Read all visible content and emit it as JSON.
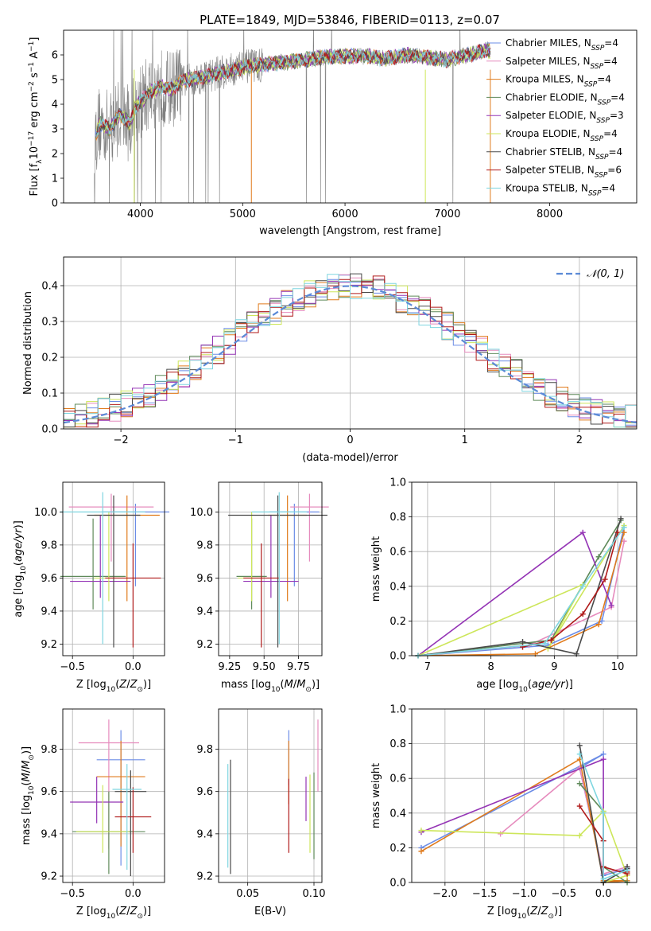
{
  "figure": {
    "title": "PLATE=1849, MJD=53846, FIBERID=0113, z=0.07"
  },
  "models": [
    {
      "name": "Chabrier MILES, N_SSP=4",
      "label_main": "Chabrier MILES, N",
      "label_sub": "SSP",
      "label_end": "=4",
      "color": "#6b8ce6"
    },
    {
      "name": "Salpeter MILES, N_SSP=4",
      "label_main": "Salpeter MILES, N",
      "label_sub": "SSP",
      "label_end": "=4",
      "color": "#e68bbd"
    },
    {
      "name": "Kroupa MILES, N_SSP=4",
      "label_main": "Kroupa MILES, N",
      "label_sub": "SSP",
      "label_end": "=4",
      "color": "#e07b1c"
    },
    {
      "name": "Chabrier ELODIE, N_SSP=4",
      "label_main": "Chabrier ELODIE, N",
      "label_sub": "SSP",
      "label_end": "=4",
      "color": "#5f8a5a"
    },
    {
      "name": "Salpeter ELODIE, N_SSP=3",
      "label_main": "Salpeter ELODIE, N",
      "label_sub": "SSP",
      "label_end": "=3",
      "color": "#9434b5"
    },
    {
      "name": "Kroupa ELODIE, N_SSP=4",
      "label_main": "Kroupa ELODIE, N",
      "label_sub": "SSP",
      "label_end": "=4",
      "color": "#cde65a"
    },
    {
      "name": "Chabrier STELIB, N_SSP=4",
      "label_main": "Chabrier STELIB, N",
      "label_sub": "SSP",
      "label_end": "=4",
      "color": "#4a4a4a"
    },
    {
      "name": "Salpeter STELIB, N_SSP=6",
      "label_main": "Salpeter STELIB, N",
      "label_sub": "SSP",
      "label_end": "=6",
      "color": "#b01a1a"
    },
    {
      "name": "Kroupa STELIB, N_SSP=4",
      "label_main": "Kroupa STELIB, N",
      "label_sub": "SSP",
      "label_end": "=4",
      "color": "#7fd6e0"
    }
  ],
  "chart_data": [
    {
      "id": "spectrum",
      "type": "line",
      "xlabel": "wavelength [Angstrom, rest frame]",
      "ylabel": "Flux [f_λ 10^-17 erg cm^-2 s^-1 A^-1]",
      "xlim": [
        3250,
        8850
      ],
      "ylim": [
        0,
        7
      ],
      "x_ticks": [
        4000,
        5000,
        6000,
        7000,
        8000
      ],
      "y_ticks": [
        0,
        1,
        2,
        3,
        4,
        5,
        6
      ],
      "observed_color": "#808080",
      "continuum_nodes": {
        "x": [
          3550,
          3600,
          3700,
          3800,
          3900,
          3950,
          4000,
          4100,
          4200,
          4300,
          4400,
          4600,
          4800,
          5000,
          5200,
          5400,
          5600,
          5800,
          6000,
          6200,
          6400,
          6600,
          6800,
          7000,
          7200,
          7400,
          7420
        ],
        "y": [
          2.5,
          3.2,
          3.0,
          3.6,
          3.2,
          3.9,
          4.1,
          4.5,
          4.7,
          4.6,
          4.9,
          5.1,
          5.3,
          5.5,
          5.6,
          5.7,
          5.8,
          5.9,
          5.95,
          5.95,
          5.85,
          6.0,
          5.9,
          5.8,
          6.0,
          6.2,
          6.1
        ]
      },
      "grid": false,
      "legend_position": "right"
    },
    {
      "id": "residuals",
      "type": "histogram",
      "xlabel": "(data-model)/error",
      "ylabel": "Normed distribution",
      "xlim": [
        -2.5,
        2.5
      ],
      "ylim": [
        0,
        0.48
      ],
      "x_ticks": [
        -2,
        -1,
        0,
        1,
        2
      ],
      "y_ticks": [
        0.0,
        0.1,
        0.2,
        0.3,
        0.4
      ],
      "bin_width": 0.1,
      "reference_label": "𝒩(0, 1)",
      "reference_color": "#5b8ad6",
      "grid": true,
      "legend_position": "top-right"
    },
    {
      "id": "age_vs_Z",
      "type": "scatter",
      "xlabel": "Z [log10(Z/Z⊙)]",
      "ylabel": "age [log10(age/yr)]",
      "xlim": [
        -0.58,
        0.26
      ],
      "ylim": [
        9.13,
        10.18
      ],
      "x_ticks": [
        -0.5,
        0.0
      ],
      "y_ticks": [
        9.2,
        9.4,
        9.6,
        9.8,
        10.0
      ],
      "grid": true,
      "points": [
        {
          "model": 0,
          "x": 0.02,
          "y": 10.0,
          "xerr": 0.28,
          "yerr_low": 0.45,
          "yerr_high": 0.05
        },
        {
          "model": 1,
          "x": -0.18,
          "y": 10.03,
          "xerr": 0.35,
          "yerr_low": 0.33,
          "yerr_high": 0.08
        },
        {
          "model": 2,
          "x": -0.05,
          "y": 9.98,
          "xerr": 0.27,
          "yerr_low": 0.52,
          "yerr_high": 0.12
        },
        {
          "model": 3,
          "x": -0.33,
          "y": 9.61,
          "xerr": 0.27,
          "yerr_low": 0.2,
          "yerr_high": 0.35
        },
        {
          "model": 4,
          "x": -0.27,
          "y": 9.58,
          "xerr": 0.25,
          "yerr_low": 0.1,
          "yerr_high": 0.4
        },
        {
          "model": 5,
          "x": -0.2,
          "y": 9.6,
          "xerr": 0.12,
          "yerr_low": 0.14,
          "yerr_high": 0.4
        },
        {
          "model": 6,
          "x": -0.16,
          "y": 9.98,
          "xerr": 0.22,
          "yerr_low": 0.8,
          "yerr_high": 0.12
        },
        {
          "model": 7,
          "x": 0.0,
          "y": 9.6,
          "xerr": 0.23,
          "yerr_low": 0.42,
          "yerr_high": 0.21
        },
        {
          "model": 8,
          "x": -0.25,
          "y": 10.0,
          "xerr": 0.35,
          "yerr_low": 0.8,
          "yerr_high": 0.12
        }
      ]
    },
    {
      "id": "age_vs_mass",
      "type": "scatter",
      "xlabel": "mass [log10(M/M⊙)]",
      "ylabel": "",
      "xlim": [
        9.17,
        9.92
      ],
      "ylim": [
        9.13,
        10.18
      ],
      "x_ticks": [
        9.25,
        9.5,
        9.75
      ],
      "y_ticks": [
        9.2,
        9.4,
        9.6,
        9.8,
        10.0
      ],
      "grid": true,
      "points": [
        {
          "model": 0,
          "x": 9.72,
          "y": 10.0,
          "xerr": 0.18,
          "yerr_low": 0.45,
          "yerr_high": 0.05
        },
        {
          "model": 1,
          "x": 9.83,
          "y": 10.03,
          "xerr": 0.14,
          "yerr_low": 0.33,
          "yerr_high": 0.08
        },
        {
          "model": 2,
          "x": 9.67,
          "y": 9.98,
          "xerr": 0.14,
          "yerr_low": 0.52,
          "yerr_high": 0.12
        },
        {
          "model": 3,
          "x": 9.41,
          "y": 9.61,
          "xerr": 0.11,
          "yerr_low": 0.2,
          "yerr_high": 0.35
        },
        {
          "model": 4,
          "x": 9.55,
          "y": 9.58,
          "xerr": 0.2,
          "yerr_low": 0.1,
          "yerr_high": 0.4
        },
        {
          "model": 5,
          "x": 9.41,
          "y": 9.6,
          "xerr": 0.1,
          "yerr_low": 0.14,
          "yerr_high": 0.4
        },
        {
          "model": 6,
          "x": 9.6,
          "y": 9.98,
          "xerr": 0.36,
          "yerr_low": 0.8,
          "yerr_high": 0.12
        },
        {
          "model": 7,
          "x": 9.48,
          "y": 9.6,
          "xerr": 0.13,
          "yerr_low": 0.42,
          "yerr_high": 0.21
        },
        {
          "model": 8,
          "x": 9.61,
          "y": 10.0,
          "xerr": 0.2,
          "yerr_low": 0.8,
          "yerr_high": 0.12
        }
      ]
    },
    {
      "id": "weight_vs_age",
      "type": "line",
      "xlabel": "age [log10(age/yr)]",
      "ylabel": "mass weight",
      "xlim": [
        6.75,
        10.3
      ],
      "ylim": [
        0,
        1.0
      ],
      "x_ticks": [
        7,
        8,
        9,
        10
      ],
      "y_ticks": [
        0.0,
        0.2,
        0.4,
        0.6,
        0.8,
        1.0
      ],
      "grid": true,
      "series": [
        {
          "model": 0,
          "x": [
            6.85,
            8.9,
            9.75,
            10.1
          ],
          "y": [
            0.0,
            0.06,
            0.2,
            0.74
          ]
        },
        {
          "model": 1,
          "x": [
            6.85,
            8.6,
            9.9,
            10.1
          ],
          "y": [
            0.0,
            0.06,
            0.28,
            0.66
          ]
        },
        {
          "model": 2,
          "x": [
            6.85,
            8.7,
            9.7,
            10.1
          ],
          "y": [
            0.0,
            0.01,
            0.18,
            0.71
          ]
        },
        {
          "model": 3,
          "x": [
            6.85,
            8.95,
            9.7,
            10.05
          ],
          "y": [
            0.0,
            0.09,
            0.57,
            0.78
          ]
        },
        {
          "model": 4,
          "x": [
            6.85,
            9.45,
            9.9
          ],
          "y": [
            0.0,
            0.71,
            0.29
          ]
        },
        {
          "model": 5,
          "x": [
            6.85,
            9.45,
            8.9,
            10.1
          ],
          "y": [
            0.0,
            0.41,
            0.04,
            0.75
          ]
        },
        {
          "model": 6,
          "x": [
            6.85,
            8.5,
            9.35,
            10.05
          ],
          "y": [
            0.0,
            0.08,
            0.01,
            0.79
          ]
        },
        {
          "model": 7,
          "x": [
            8.5,
            8.95,
            9.45,
            9.8,
            10.0
          ],
          "y": [
            0.05,
            0.09,
            0.24,
            0.44,
            0.71
          ]
        },
        {
          "model": 8,
          "x": [
            6.85,
            8.85,
            9.45,
            10.1
          ],
          "y": [
            0.0,
            0.07,
            0.4,
            0.74
          ]
        }
      ]
    },
    {
      "id": "mass_vs_Z",
      "type": "scatter",
      "xlabel": "Z [log10(Z/Z⊙)]",
      "ylabel": "mass [log10(M/M⊙)]",
      "xlim": [
        -0.58,
        0.26
      ],
      "ylim": [
        9.17,
        9.99
      ],
      "x_ticks": [
        -0.5,
        0.0
      ],
      "y_ticks": [
        9.2,
        9.4,
        9.6,
        9.8
      ],
      "grid": true,
      "points": [
        {
          "model": 0,
          "x": -0.1,
          "y": 9.75,
          "xerr": 0.2,
          "yerr_low": 0.5,
          "yerr_high": 0.14
        },
        {
          "model": 1,
          "x": -0.2,
          "y": 9.83,
          "xerr": 0.25,
          "yerr_low": 0.5,
          "yerr_high": 0.11
        },
        {
          "model": 2,
          "x": -0.1,
          "y": 9.67,
          "xerr": 0.2,
          "yerr_low": 0.33,
          "yerr_high": 0.17
        },
        {
          "model": 3,
          "x": -0.2,
          "y": 9.41,
          "xerr": 0.3,
          "yerr_low": 0.2,
          "yerr_high": 0.19
        },
        {
          "model": 4,
          "x": -0.3,
          "y": 9.55,
          "xerr": 0.22,
          "yerr_low": 0.1,
          "yerr_high": 0.12
        },
        {
          "model": 5,
          "x": -0.25,
          "y": 9.41,
          "xerr": 0.22,
          "yerr_low": 0.1,
          "yerr_high": 0.22
        },
        {
          "model": 6,
          "x": -0.02,
          "y": 9.6,
          "xerr": 0.13,
          "yerr_low": 0.4,
          "yerr_high": 0.1
        },
        {
          "model": 7,
          "x": 0.0,
          "y": 9.48,
          "xerr": 0.15,
          "yerr_low": 0.17,
          "yerr_high": 0.14
        },
        {
          "model": 8,
          "x": -0.05,
          "y": 9.61,
          "xerr": 0.12,
          "yerr_low": 0.38,
          "yerr_high": 0.12
        }
      ]
    },
    {
      "id": "mass_vs_ebv",
      "type": "scatter",
      "xlabel": "E(B-V)",
      "ylabel": "",
      "xlim": [
        0.028,
        0.106
      ],
      "ylim": [
        9.17,
        9.99
      ],
      "x_ticks": [
        0.05,
        0.1
      ],
      "y_ticks": [
        9.2,
        9.4,
        9.6,
        9.8
      ],
      "grid": true,
      "points": [
        {
          "model": 0,
          "x": 0.081,
          "y": 9.75,
          "yerr_low": 0.12,
          "yerr_high": 0.14
        },
        {
          "model": 1,
          "x": 0.103,
          "y": 9.83,
          "yerr_low": 0.23,
          "yerr_high": 0.11
        },
        {
          "model": 2,
          "x": 0.081,
          "y": 9.67,
          "yerr_low": 0.13,
          "yerr_high": 0.17
        },
        {
          "model": 3,
          "x": 0.1,
          "y": 9.41,
          "yerr_low": 0.13,
          "yerr_high": 0.28
        },
        {
          "model": 4,
          "x": 0.094,
          "y": 9.55,
          "yerr_low": 0.09,
          "yerr_high": 0.12
        },
        {
          "model": 5,
          "x": 0.097,
          "y": 9.41,
          "yerr_low": 0.1,
          "yerr_high": 0.27
        },
        {
          "model": 6,
          "x": 0.037,
          "y": 9.6,
          "yerr_low": 0.39,
          "yerr_high": 0.15
        },
        {
          "model": 7,
          "x": 0.081,
          "y": 9.48,
          "yerr_low": 0.17,
          "yerr_high": 0.18
        },
        {
          "model": 8,
          "x": 0.035,
          "y": 9.61,
          "yerr_low": 0.37,
          "yerr_high": 0.12
        }
      ]
    },
    {
      "id": "weight_vs_Z",
      "type": "line",
      "xlabel": "Z [log10(Z/Z⊙)]",
      "ylabel": "mass weight",
      "xlim": [
        -2.42,
        0.42
      ],
      "ylim": [
        0,
        1.0
      ],
      "x_ticks": [
        -2.0,
        -1.5,
        -1.0,
        -0.5,
        0.0
      ],
      "y_ticks": [
        0.0,
        0.2,
        0.4,
        0.6,
        0.8,
        1.0
      ],
      "grid": true,
      "series": [
        {
          "model": 0,
          "x": [
            -2.3,
            0.0,
            -0.3,
            0.0,
            0.3
          ],
          "y": [
            0.2,
            0.74,
            0.66,
            0.04,
            0.08
          ]
        },
        {
          "model": 1,
          "x": [
            -1.3,
            -0.3,
            0.0,
            0.3
          ],
          "y": [
            0.28,
            0.66,
            0.05,
            0.09
          ]
        },
        {
          "model": 2,
          "x": [
            -2.3,
            -0.3,
            0.0,
            0.3,
            0.0
          ],
          "y": [
            0.18,
            0.71,
            0.01,
            0.01,
            0.0
          ]
        },
        {
          "model": 3,
          "x": [
            -0.3,
            0.0,
            0.0,
            0.3
          ],
          "y": [
            0.57,
            0.41,
            0.09,
            0.0
          ]
        },
        {
          "model": 4,
          "x": [
            -2.3,
            0.0,
            0.0
          ],
          "y": [
            0.29,
            0.71,
            0.0
          ]
        },
        {
          "model": 5,
          "x": [
            -2.3,
            -0.3,
            0.0,
            0.3,
            0.0
          ],
          "y": [
            0.3,
            0.27,
            0.41,
            0.04,
            0.0
          ]
        },
        {
          "model": 6,
          "x": [
            -0.3,
            0.0,
            0.3,
            0.3
          ],
          "y": [
            0.79,
            0.0,
            0.08,
            0.09
          ]
        },
        {
          "model": 7,
          "x": [
            -0.3,
            0.0,
            0.0,
            0.3,
            0.3
          ],
          "y": [
            0.44,
            0.24,
            0.09,
            0.05,
            0.06
          ]
        },
        {
          "model": 8,
          "x": [
            -0.3,
            0.0,
            0.0,
            0.3
          ],
          "y": [
            0.74,
            0.4,
            0.02,
            0.07
          ]
        }
      ]
    }
  ]
}
